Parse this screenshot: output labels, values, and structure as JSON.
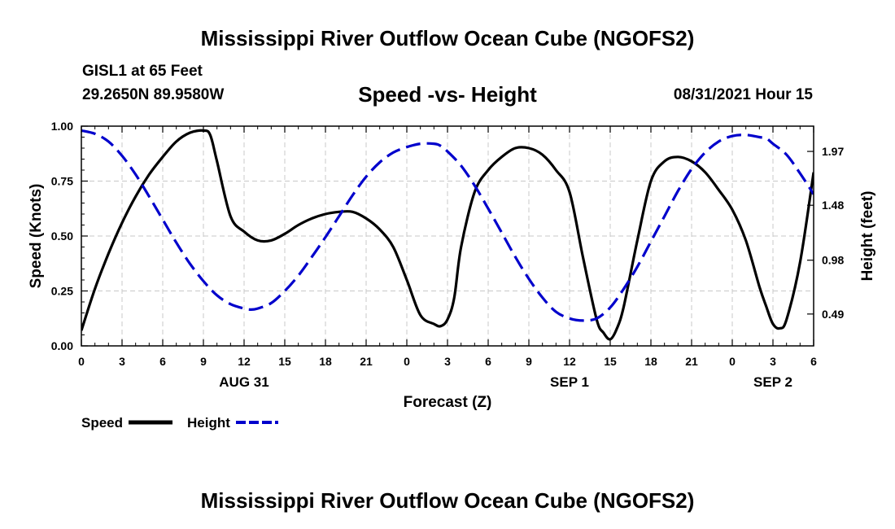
{
  "header": {
    "title": "Mississippi River Outflow Ocean Cube (NGOFS2)",
    "station": "GISL1 at 65 Feet",
    "coords": "29.2650N  89.9580W",
    "datetime": "08/31/2021 Hour 15"
  },
  "footer": {
    "title": "Mississippi River Outflow Ocean Cube (NGOFS2)"
  },
  "colors": {
    "speed": "#000000",
    "height": "#0000cc",
    "grid": "#c8c8c8"
  },
  "chart_data": {
    "type": "line",
    "title": "Speed -vs- Height",
    "xlabel": "Forecast (Z)",
    "ylabel": "Speed (Knots)",
    "ylabel_right": "Height (feet)",
    "xlim": [
      0,
      54
    ],
    "ylim": [
      0,
      1
    ],
    "ylim_right": [
      0.2,
      2.2
    ],
    "x_ticks": [
      0,
      3,
      6,
      9,
      12,
      15,
      18,
      21,
      24,
      27,
      30,
      33,
      36,
      39,
      42,
      45,
      48,
      51,
      54
    ],
    "x_tick_labels": [
      "0",
      "3",
      "6",
      "9",
      "12",
      "15",
      "18",
      "21",
      "0",
      "3",
      "6",
      "9",
      "12",
      "15",
      "18",
      "21",
      "0",
      "3",
      "6"
    ],
    "date_labels": [
      {
        "x": 12,
        "label": "AUG 31"
      },
      {
        "x": 36,
        "label": "SEP 1"
      },
      {
        "x": 51,
        "label": "SEP 2"
      }
    ],
    "y_ticks": [
      0.0,
      0.25,
      0.5,
      0.75,
      1.0
    ],
    "y_tick_labels": [
      "0.00",
      "0.25",
      "0.50",
      "0.75",
      "1.00"
    ],
    "y_right_ticks": [
      0.49,
      0.98,
      1.48,
      1.97
    ],
    "y_right_tick_labels": [
      "0.49",
      "0.98",
      "1.48",
      "1.97"
    ],
    "grid": true,
    "legend": "bottom-left",
    "series": [
      {
        "name": "Speed",
        "axis": "left",
        "style": "solid",
        "x": [
          0,
          1,
          2,
          3,
          4,
          5,
          6,
          7,
          8,
          9,
          9.5,
          10,
          11,
          12,
          13,
          14,
          15,
          16,
          17,
          18,
          19,
          20,
          21,
          22,
          23,
          24,
          25,
          26,
          26.5,
          27,
          27.5,
          28,
          29,
          30,
          31,
          32,
          33,
          34,
          35,
          36,
          37,
          38,
          38.5,
          39,
          39.5,
          40,
          41,
          42,
          43,
          44,
          45,
          46,
          47,
          48,
          49,
          50,
          50.5,
          51,
          51.5,
          52,
          53,
          54
        ],
        "values": [
          0.07,
          0.26,
          0.42,
          0.56,
          0.68,
          0.78,
          0.86,
          0.93,
          0.97,
          0.98,
          0.96,
          0.84,
          0.59,
          0.52,
          0.48,
          0.48,
          0.51,
          0.55,
          0.58,
          0.6,
          0.61,
          0.61,
          0.58,
          0.53,
          0.45,
          0.3,
          0.14,
          0.1,
          0.09,
          0.12,
          0.22,
          0.45,
          0.7,
          0.8,
          0.86,
          0.9,
          0.9,
          0.87,
          0.8,
          0.7,
          0.4,
          0.12,
          0.06,
          0.03,
          0.08,
          0.18,
          0.48,
          0.75,
          0.84,
          0.86,
          0.84,
          0.79,
          0.71,
          0.62,
          0.48,
          0.27,
          0.18,
          0.1,
          0.08,
          0.12,
          0.38,
          0.79
        ]
      },
      {
        "name": "Height",
        "axis": "right",
        "style": "dashed",
        "x": [
          0,
          1,
          2,
          3,
          4,
          5,
          6,
          7,
          8,
          9,
          10,
          11,
          12,
          12.5,
          13,
          14,
          15,
          16,
          17,
          18,
          19,
          20,
          21,
          22,
          23,
          24,
          25,
          26,
          26.5,
          27,
          28,
          29,
          30,
          31,
          32,
          33,
          34,
          35,
          36,
          37,
          38,
          39,
          40,
          41,
          42,
          43,
          44,
          45,
          46,
          47,
          48,
          49,
          50,
          50.5,
          51,
          52,
          53,
          54
        ],
        "values": [
          2.16,
          2.13,
          2.06,
          1.93,
          1.76,
          1.56,
          1.35,
          1.14,
          0.95,
          0.79,
          0.66,
          0.58,
          0.54,
          0.53,
          0.54,
          0.59,
          0.7,
          0.84,
          1.01,
          1.19,
          1.38,
          1.57,
          1.74,
          1.87,
          1.96,
          2.01,
          2.04,
          2.04,
          2.02,
          1.97,
          1.84,
          1.66,
          1.45,
          1.23,
          1.01,
          0.81,
          0.64,
          0.51,
          0.45,
          0.43,
          0.45,
          0.55,
          0.72,
          0.92,
          1.15,
          1.38,
          1.61,
          1.81,
          1.96,
          2.06,
          2.11,
          2.12,
          2.1,
          2.09,
          2.04,
          1.94,
          1.77,
          1.58
        ]
      }
    ]
  }
}
